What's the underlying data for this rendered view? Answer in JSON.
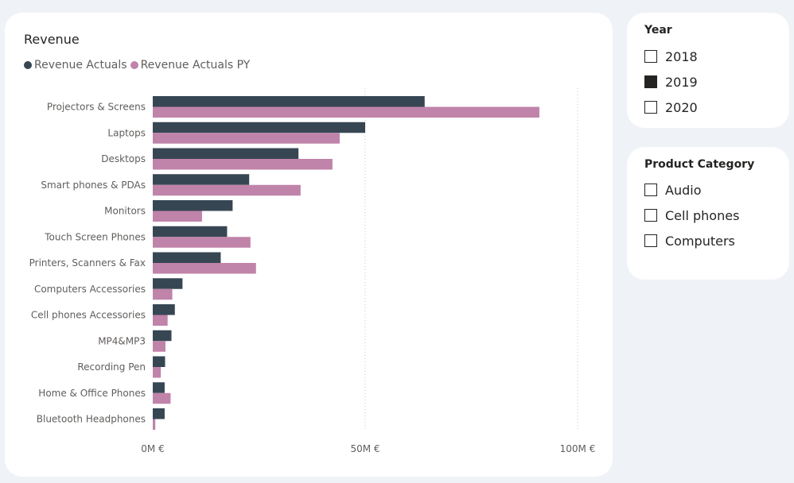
{
  "chart_card": {
    "title": "Revenue",
    "legend": [
      {
        "label": "Revenue Actuals",
        "color": "#374653"
      },
      {
        "label": "Revenue Actuals PY",
        "color": "#c083a9"
      }
    ]
  },
  "chart_data": {
    "type": "bar",
    "orientation": "horizontal",
    "title": "Revenue",
    "categories": [
      "Projectors & Screens",
      "Laptops",
      "Desktops",
      "Smart phones & PDAs",
      "Monitors",
      "Touch Screen Phones",
      "Printers, Scanners & Fax",
      "Computers Accessories",
      "Cell phones Accessories",
      "MP4&MP3",
      "Recording Pen",
      "Home & Office Phones",
      "Bluetooth Headphones"
    ],
    "series": [
      {
        "name": "Revenue Actuals",
        "color": "#374653",
        "values": [
          64,
          50,
          34.3,
          22.7,
          18.8,
          17.5,
          16,
          7,
          5.2,
          4.4,
          2.9,
          2.8,
          2.8
        ]
      },
      {
        "name": "Revenue Actuals PY",
        "color": "#c083a9",
        "values": [
          91,
          44,
          42.3,
          34.8,
          11.6,
          23,
          24.3,
          4.6,
          3.5,
          3,
          1.9,
          4.2,
          0.6
        ]
      }
    ],
    "xlim": [
      0,
      100
    ],
    "xticks": [
      "0M €",
      "50M €",
      "100M €"
    ],
    "xtick_values": [
      0,
      50,
      100
    ],
    "grid": true,
    "legend_position": "top-left"
  },
  "year_slicer": {
    "title": "Year",
    "items": [
      {
        "label": "2018",
        "checked": false
      },
      {
        "label": "2019",
        "checked": true
      },
      {
        "label": "2020",
        "checked": false
      }
    ]
  },
  "category_slicer": {
    "title": "Product Category",
    "items": [
      {
        "label": "Audio",
        "checked": false
      },
      {
        "label": "Cell phones",
        "checked": false
      },
      {
        "label": "Computers",
        "checked": false
      }
    ]
  }
}
